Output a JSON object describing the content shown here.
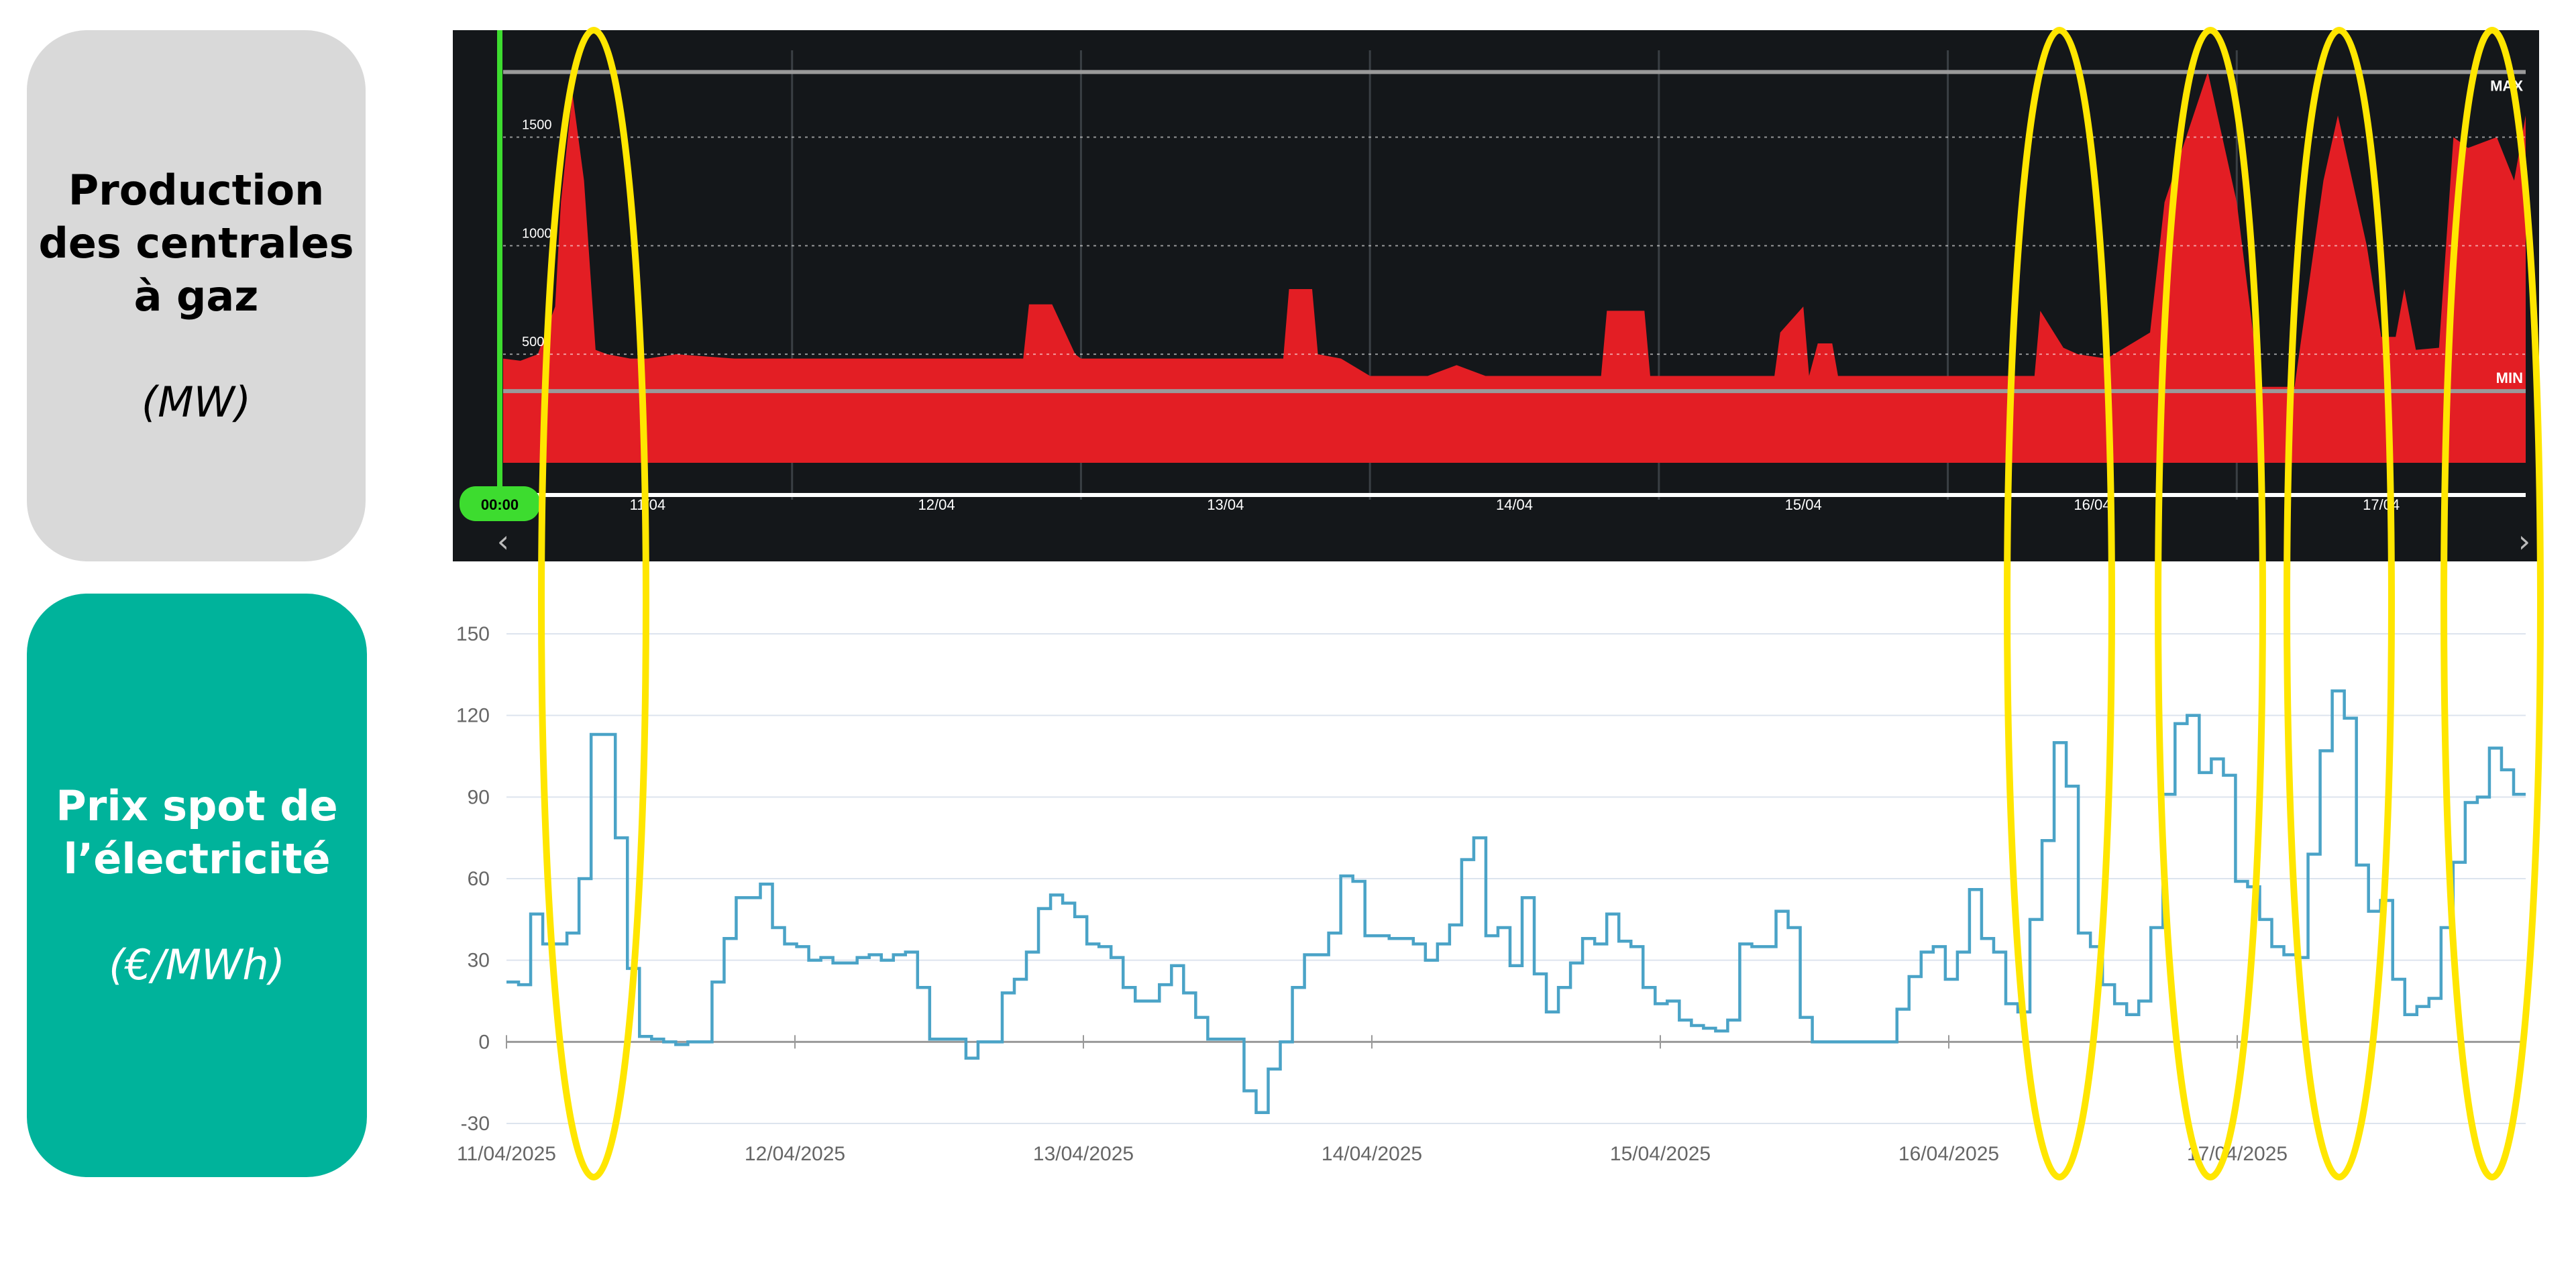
{
  "labels": {
    "gas": {
      "title": "Production des centrales à gaz",
      "unit": "(MW)"
    },
    "price": {
      "title": "Prix spot de l’électricité",
      "unit": "(€/MWh)"
    }
  },
  "gas_panel": {
    "time_badge": "00:00",
    "max_label": "MAX",
    "min_label": "MIN",
    "nav_left": "‹",
    "nav_right": "›"
  },
  "colors": {
    "gas_fill": "#e31e24",
    "gas_bg": "#14171a",
    "price_line": "#4aa3c7",
    "highlight": "#ffe600",
    "cursor": "#3ddc2f",
    "price_box": "#00b39b",
    "gas_box": "#d9d9d9"
  },
  "chart_data": [
    {
      "type": "area",
      "ylim": [
        0,
        1900
      ],
      "xlim": [
        0,
        7
      ],
      "yticks": [
        500,
        1000,
        1500
      ],
      "ytick_labels": [
        "500",
        "1000",
        "1500"
      ],
      "xtick_positions": [
        0.5,
        1.5,
        2.5,
        3.5,
        4.5,
        5.5,
        6.5
      ],
      "xtick_labels": [
        "11/04",
        "12/04",
        "13/04",
        "14/04",
        "15/04",
        "16/04",
        "17/04"
      ],
      "max_value": 1800,
      "min_value": 330,
      "x": [
        0,
        0.06,
        0.12,
        0.18,
        0.2,
        0.24,
        0.28,
        0.32,
        0.36,
        0.4,
        0.44,
        0.5,
        0.6,
        0.8,
        0.9,
        1.0,
        1.1,
        1.3,
        1.5,
        1.8,
        1.82,
        1.9,
        1.98,
        2.0,
        2.3,
        2.7,
        2.72,
        2.8,
        2.82,
        2.9,
        3.0,
        3.2,
        3.3,
        3.4,
        3.5,
        3.8,
        3.82,
        3.95,
        3.97,
        4.2,
        4.4,
        4.42,
        4.5,
        4.52,
        4.55,
        4.6,
        4.62,
        5.3,
        5.32,
        5.4,
        5.45,
        5.55,
        5.7,
        5.75,
        5.9,
        6.0,
        6.08,
        6.1,
        6.2,
        6.3,
        6.35,
        6.45,
        6.5,
        6.55,
        6.58,
        6.62,
        6.7,
        6.75,
        6.8,
        6.9,
        6.96,
        7.0
      ],
      "y": [
        480,
        470,
        500,
        720,
        1200,
        1700,
        1300,
        520,
        500,
        490,
        480,
        480,
        500,
        480,
        480,
        480,
        480,
        480,
        480,
        480,
        730,
        730,
        500,
        480,
        480,
        480,
        800,
        800,
        500,
        480,
        400,
        400,
        450,
        400,
        400,
        400,
        700,
        700,
        400,
        400,
        400,
        600,
        720,
        400,
        550,
        550,
        400,
        400,
        700,
        530,
        500,
        480,
        600,
        1200,
        1800,
        1200,
        350,
        350,
        350,
        1300,
        1600,
        1000,
        580,
        580,
        800,
        520,
        530,
        1500,
        1450,
        1500,
        1300,
        1600
      ]
    },
    {
      "type": "line",
      "ylim": [
        -30,
        150
      ],
      "yticks": [
        -30,
        0,
        30,
        60,
        90,
        120,
        150
      ],
      "xtick_labels": [
        "11/04/2025",
        "12/04/2025",
        "13/04/2025",
        "14/04/2025",
        "15/04/2025",
        "16/04/2025",
        "17/04/2025"
      ],
      "step": "hv",
      "values": [
        22,
        21,
        47,
        36,
        36,
        40,
        60,
        113,
        113,
        75,
        27,
        2,
        1,
        0,
        -1,
        0,
        0,
        22,
        38,
        53,
        53,
        58,
        42,
        36,
        35,
        30,
        31,
        29,
        29,
        31,
        32,
        30,
        32,
        33,
        20,
        1,
        1,
        1,
        -6,
        0,
        0,
        18,
        23,
        33,
        49,
        54,
        51,
        46,
        36,
        35,
        31,
        20,
        15,
        15,
        21,
        28,
        18,
        9,
        1,
        1,
        1,
        -18,
        -26,
        -10,
        0,
        20,
        32,
        32,
        40,
        61,
        59,
        39,
        39,
        38,
        38,
        36,
        30,
        36,
        43,
        67,
        75,
        39,
        42,
        28,
        53,
        25,
        11,
        20,
        29,
        38,
        36,
        47,
        37,
        35,
        20,
        14,
        15,
        8,
        6,
        5,
        4,
        8,
        36,
        35,
        35,
        48,
        42,
        9,
        0,
        0,
        0,
        0,
        0,
        0,
        0,
        12,
        24,
        33,
        35,
        23,
        33,
        56,
        38,
        33,
        14,
        11,
        45,
        74,
        110,
        94,
        40,
        35,
        21,
        14,
        10,
        15,
        42,
        91,
        117,
        120,
        99,
        104,
        98,
        59,
        57,
        45,
        35,
        32,
        31,
        69,
        107,
        129,
        119,
        65,
        48,
        52,
        23,
        10,
        13,
        16,
        42,
        66,
        88,
        90,
        108,
        100,
        91
      ]
    }
  ]
}
